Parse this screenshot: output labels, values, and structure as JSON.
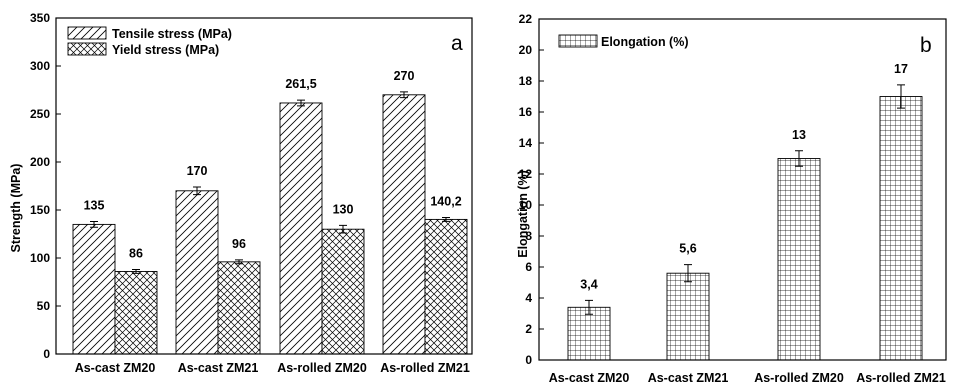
{
  "chart_data": [
    {
      "type": "bar",
      "panel_label": "a",
      "ylabel": "Strength (MPa)",
      "ylim": [
        0,
        350
      ],
      "yticks": [
        "0",
        "50",
        "100",
        "150",
        "200",
        "250",
        "300",
        "350"
      ],
      "categories": [
        "As-cast ZM20",
        "As-cast ZM21",
        "As-rolled ZM20",
        "As-rolled ZM21"
      ],
      "legend_position": "top-left",
      "series": [
        {
          "name": "Tensile stress (MPa)",
          "pattern": "diagonal-hatch",
          "values": [
            135,
            170,
            261.5,
            270
          ],
          "errors": [
            3,
            4,
            3,
            3
          ],
          "labels": [
            "135",
            "170",
            "261,5",
            "270"
          ]
        },
        {
          "name": "Yield stress (MPa)",
          "pattern": "cross-hatch",
          "values": [
            86,
            96,
            130,
            140.2
          ],
          "errors": [
            2,
            2,
            4,
            2
          ],
          "labels": [
            "86",
            "96",
            "130",
            "140,2"
          ]
        }
      ]
    },
    {
      "type": "bar",
      "panel_label": "b",
      "ylabel": "Elongation (%)",
      "ylim": [
        0,
        22
      ],
      "yticks": [
        "0",
        "2",
        "4",
        "6",
        "8",
        "10",
        "12",
        "14",
        "16",
        "18",
        "20",
        "22"
      ],
      "categories": [
        "As-cast ZM20",
        "As-cast ZM21",
        "As-rolled ZM20",
        "As-rolled ZM21"
      ],
      "legend_position": "top-left",
      "series": [
        {
          "name": "Elongation (%)",
          "pattern": "grid",
          "values": [
            3.4,
            5.6,
            13,
            17
          ],
          "errors": [
            0.45,
            0.55,
            0.5,
            0.75
          ],
          "labels": [
            "3,4",
            "5,6",
            "13",
            "17"
          ]
        }
      ]
    }
  ]
}
